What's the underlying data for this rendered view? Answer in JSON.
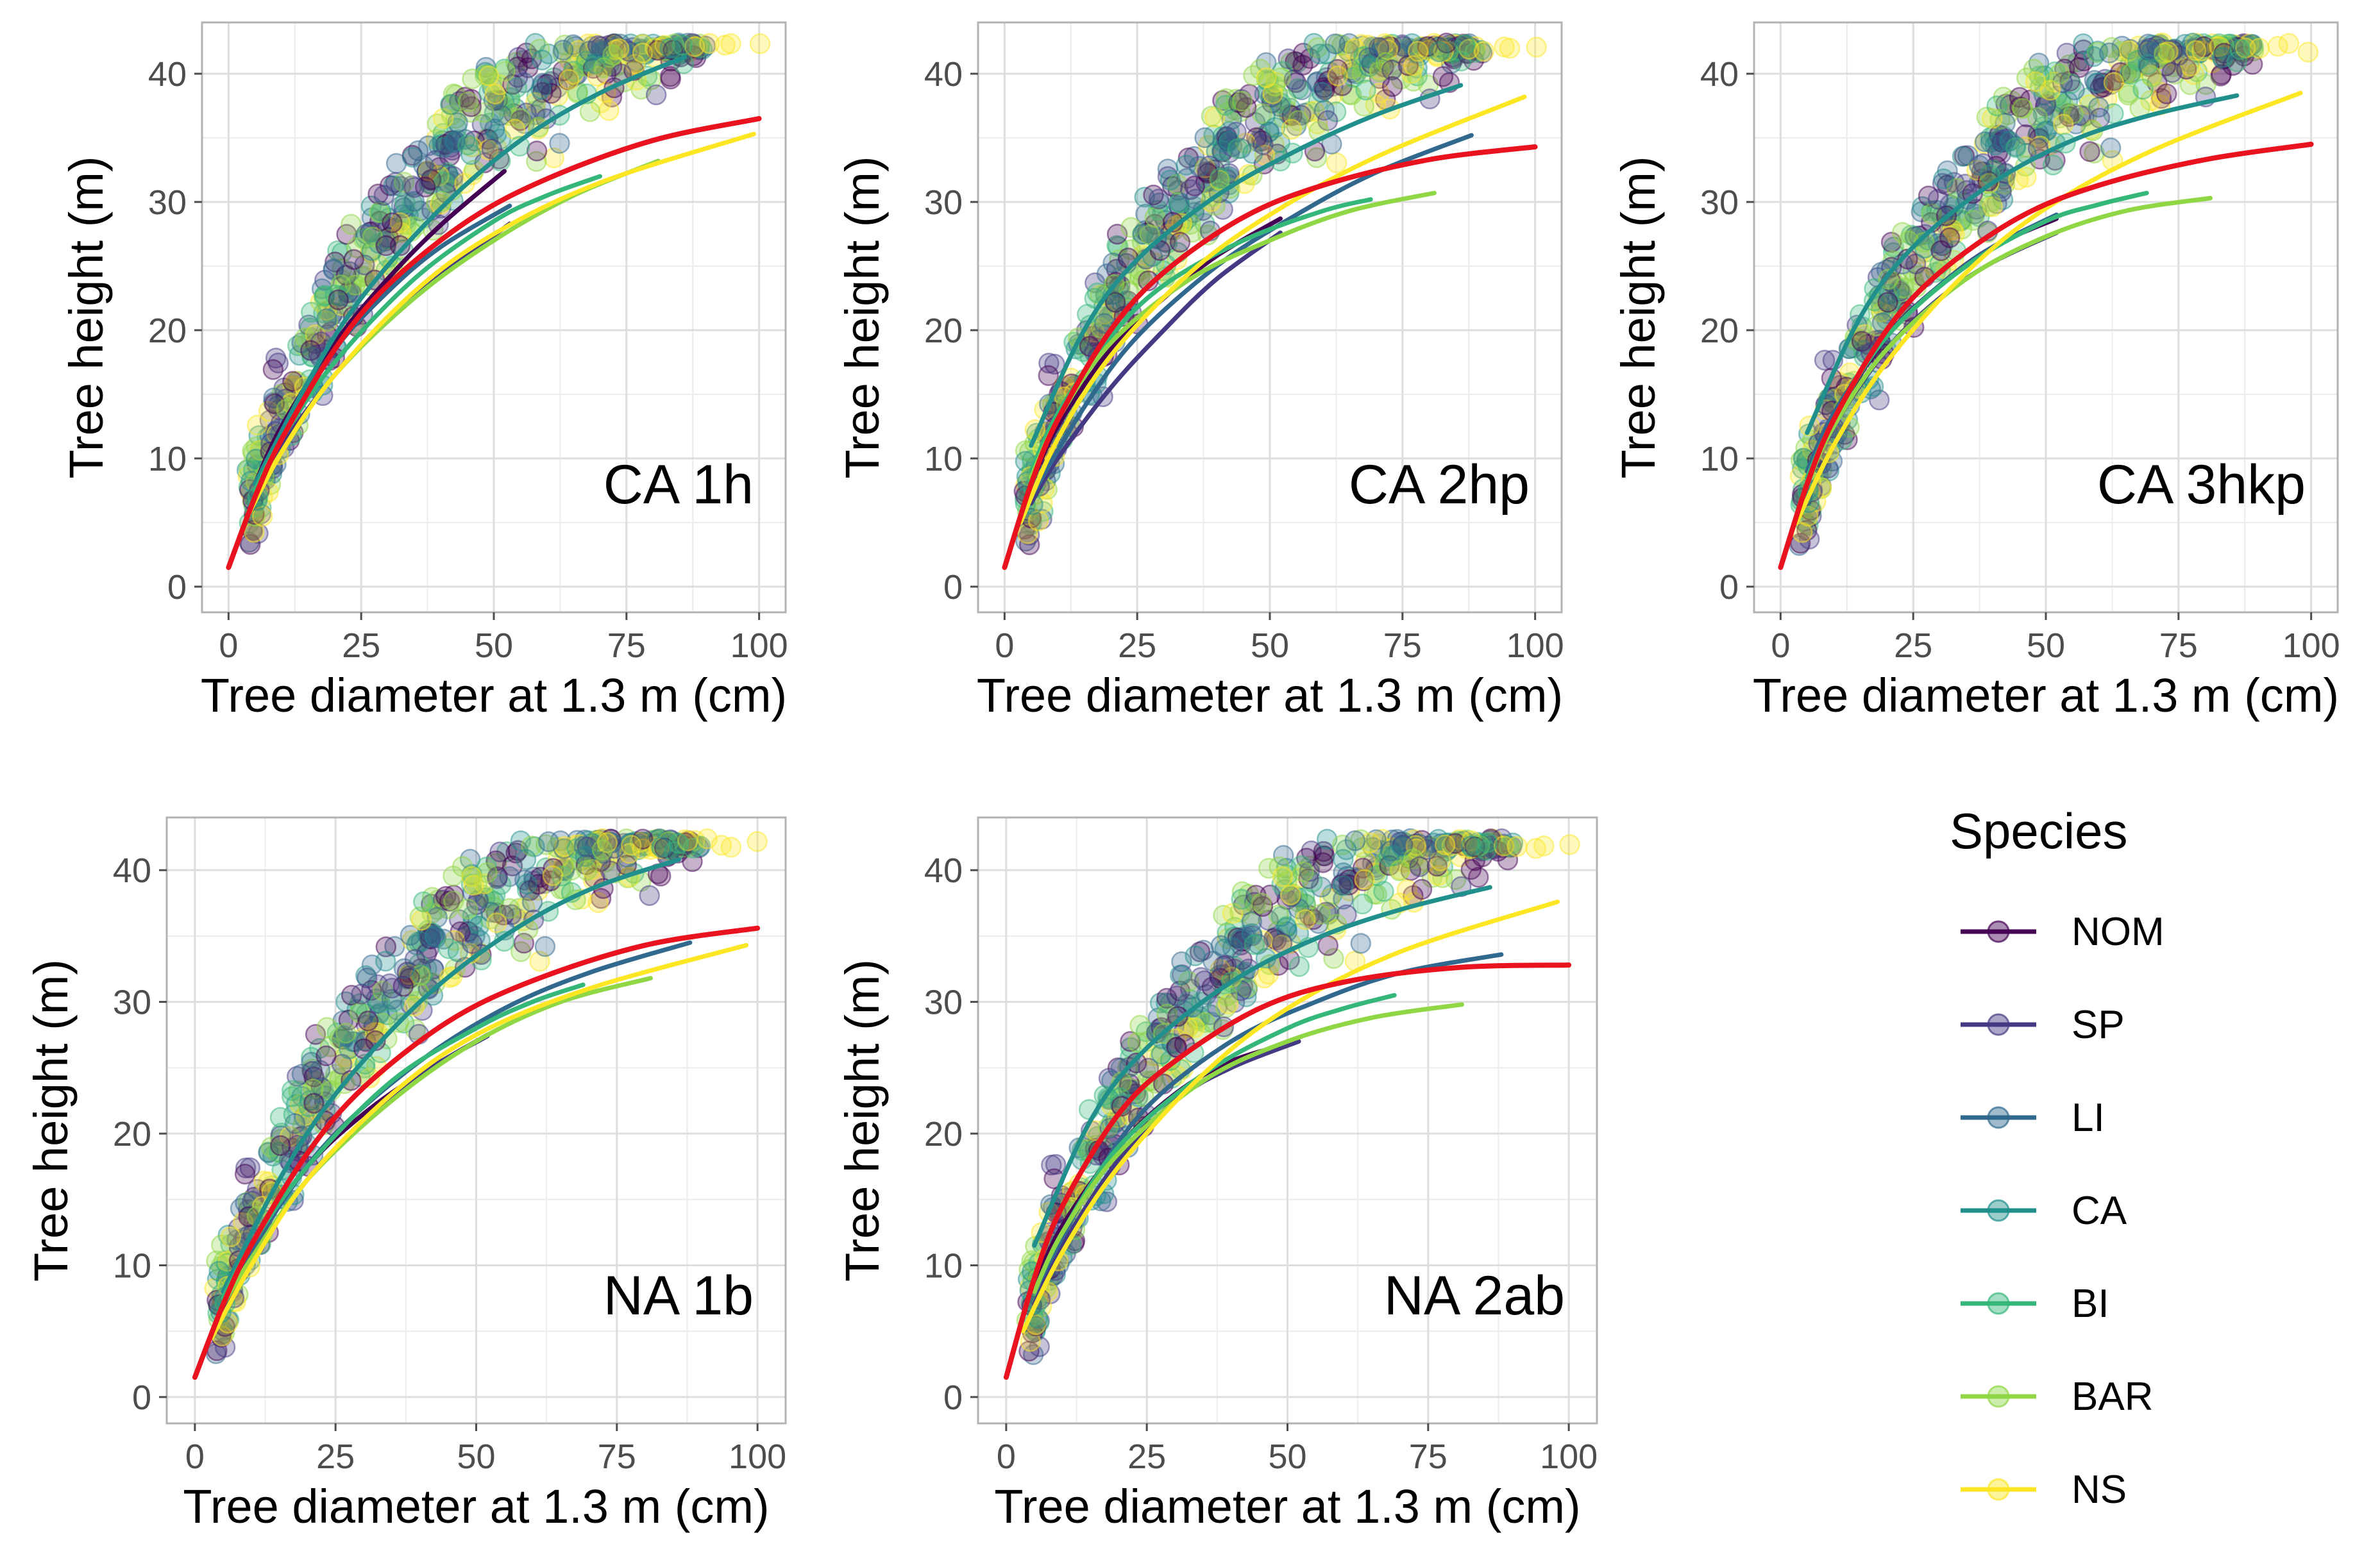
{
  "figure": {
    "legend": {
      "title": "Species",
      "entries": [
        {
          "name": "NOM",
          "color": "#440154"
        },
        {
          "name": "SP",
          "color": "#443a83"
        },
        {
          "name": "LI",
          "color": "#31688e"
        },
        {
          "name": "CA",
          "color": "#21908d"
        },
        {
          "name": "BI",
          "color": "#35b779"
        },
        {
          "name": "BAR",
          "color": "#8fd744"
        },
        {
          "name": "NS",
          "color": "#fde725"
        }
      ],
      "overall_fit_color": "#e8131f"
    }
  },
  "chart_data": [
    {
      "type": "scatter",
      "title": "CA 1h",
      "xlabel": "Tree diameter at 1.3 m (cm)",
      "ylabel": "Tree height (m)",
      "xlim": [
        -5,
        105
      ],
      "ylim": [
        -2,
        44
      ],
      "xticks": [
        0,
        25,
        50,
        75,
        100
      ],
      "yticks": [
        0,
        10,
        20,
        30,
        40
      ],
      "grid": true,
      "fit_curves": [
        {
          "name": "NOM",
          "color": "#440154",
          "x": [
            5,
            10,
            20,
            30,
            40,
            52
          ],
          "y": [
            8,
            12.5,
            19,
            24,
            28.2,
            32.4
          ]
        },
        {
          "name": "SP",
          "color": "#443a83",
          "x": [
            5,
            10,
            20,
            30,
            40,
            53
          ],
          "y": [
            7.5,
            11,
            16.5,
            20.8,
            24.3,
            28.3
          ]
        },
        {
          "name": "LI",
          "color": "#31688e",
          "x": [
            5,
            10,
            20,
            30,
            40,
            53
          ],
          "y": [
            8,
            12,
            18.5,
            23,
            26.5,
            29.7
          ]
        },
        {
          "name": "CA",
          "color": "#21908d",
          "x": [
            5,
            15,
            25,
            40,
            55,
            70,
            86
          ],
          "y": [
            8,
            16,
            22.5,
            29.5,
            34.8,
            38.5,
            41.3
          ]
        },
        {
          "name": "BI",
          "color": "#35b779",
          "x": [
            5,
            10,
            20,
            35,
            50,
            60,
            70
          ],
          "y": [
            7.5,
            11.5,
            17.5,
            24,
            28.5,
            30.5,
            32
          ]
        },
        {
          "name": "BAR",
          "color": "#8fd744",
          "x": [
            5,
            10,
            20,
            35,
            50,
            65,
            81
          ],
          "y": [
            7,
            10.5,
            16.5,
            22.5,
            27,
            30.5,
            33.2
          ]
        },
        {
          "name": "NS",
          "color": "#fde725",
          "x": [
            3,
            10,
            20,
            35,
            50,
            70,
            99
          ],
          "y": [
            5,
            10.5,
            16.5,
            23,
            27.5,
            31.5,
            35.3
          ]
        },
        {
          "name": "All",
          "color": "#e8131f",
          "x": [
            0,
            5,
            10,
            20,
            30,
            45,
            60,
            80,
            100
          ],
          "y": [
            1.5,
            7,
            11.5,
            18.5,
            23.5,
            28.5,
            31.8,
            34.8,
            36.5
          ]
        }
      ]
    },
    {
      "type": "scatter",
      "title": "CA 2hp",
      "xlabel": "Tree diameter at 1.3 m (cm)",
      "ylabel": "Tree height (m)",
      "xlim": [
        -5,
        105
      ],
      "ylim": [
        -2,
        44
      ],
      "xticks": [
        0,
        25,
        50,
        75,
        100
      ],
      "yticks": [
        0,
        10,
        20,
        30,
        40
      ],
      "grid": true,
      "fit_curves": [
        {
          "name": "NOM",
          "color": "#440154",
          "x": [
            5,
            10,
            20,
            30,
            40,
            52
          ],
          "y": [
            8,
            12.5,
            18.5,
            22.5,
            25.8,
            28.7
          ]
        },
        {
          "name": "SP",
          "color": "#443a83",
          "x": [
            5,
            10,
            20,
            30,
            40,
            52
          ],
          "y": [
            6.5,
            10,
            15.5,
            20,
            24,
            27.6
          ]
        },
        {
          "name": "LI",
          "color": "#31688e",
          "x": [
            5,
            15,
            25,
            40,
            55,
            70,
            88
          ],
          "y": [
            7,
            14,
            19.5,
            25,
            29,
            32.3,
            35.2
          ]
        },
        {
          "name": "CA",
          "color": "#21908d",
          "x": [
            5,
            15,
            25,
            40,
            55,
            70,
            86
          ],
          "y": [
            11,
            20,
            25.5,
            30.5,
            34,
            36.8,
            39.1
          ]
        },
        {
          "name": "BI",
          "color": "#35b779",
          "x": [
            5,
            10,
            20,
            30,
            45,
            60,
            69
          ],
          "y": [
            9,
            13.5,
            19.5,
            23.5,
            27,
            29.3,
            30.2
          ]
        },
        {
          "name": "BAR",
          "color": "#8fd744",
          "x": [
            5,
            10,
            20,
            35,
            50,
            65,
            81
          ],
          "y": [
            8.5,
            13,
            19,
            24,
            27,
            29.3,
            30.7
          ]
        },
        {
          "name": "NS",
          "color": "#fde725",
          "x": [
            3,
            10,
            20,
            35,
            50,
            70,
            98
          ],
          "y": [
            5,
            11.5,
            18,
            24.5,
            29,
            33.5,
            38.2
          ]
        },
        {
          "name": "All",
          "color": "#e8131f",
          "x": [
            0,
            5,
            10,
            20,
            30,
            45,
            60,
            80,
            100
          ],
          "y": [
            1.5,
            8,
            13,
            20,
            24.5,
            28.8,
            31.3,
            33.3,
            34.3
          ]
        }
      ]
    },
    {
      "type": "scatter",
      "title": "CA 3hkp",
      "xlabel": "Tree diameter at 1.3 m (cm)",
      "ylabel": "Tree height (m)",
      "xlim": [
        -5,
        105
      ],
      "ylim": [
        -2,
        44
      ],
      "xticks": [
        0,
        25,
        50,
        75,
        100
      ],
      "yticks": [
        0,
        10,
        20,
        30,
        40
      ],
      "grid": true,
      "fit_curves": [
        {
          "name": "NOM",
          "color": "#440154",
          "x": [
            5,
            10,
            20,
            30,
            40,
            52
          ],
          "y": [
            8.5,
            13,
            19.5,
            23.5,
            26.5,
            28.7
          ]
        },
        {
          "name": "SP",
          "color": "#443a83",
          "x": [
            5,
            10,
            20,
            30,
            40,
            52
          ],
          "y": [
            8,
            12.5,
            18.5,
            22.5,
            25.3,
            27.6
          ]
        },
        {
          "name": "LI",
          "color": "#31688e",
          "x": [
            5,
            10,
            20,
            30,
            40,
            52
          ],
          "y": [
            9,
            13.5,
            19.5,
            23.5,
            26.5,
            29
          ]
        },
        {
          "name": "CA",
          "color": "#21908d",
          "x": [
            5,
            15,
            25,
            40,
            55,
            70,
            86
          ],
          "y": [
            12,
            21,
            26.5,
            31.5,
            34.8,
            36.8,
            38.3
          ]
        },
        {
          "name": "BI",
          "color": "#35b779",
          "x": [
            5,
            10,
            20,
            35,
            50,
            60,
            69
          ],
          "y": [
            8.5,
            13,
            19.5,
            25,
            28.5,
            29.8,
            30.7
          ]
        },
        {
          "name": "BAR",
          "color": "#8fd744",
          "x": [
            5,
            10,
            20,
            35,
            50,
            65,
            81
          ],
          "y": [
            8,
            12.5,
            18.5,
            24,
            27.3,
            29.3,
            30.3
          ]
        },
        {
          "name": "NS",
          "color": "#fde725",
          "x": [
            3,
            10,
            20,
            35,
            50,
            70,
            98
          ],
          "y": [
            5,
            11,
            17.5,
            24.5,
            29.5,
            34,
            38.5
          ]
        },
        {
          "name": "All",
          "color": "#e8131f",
          "x": [
            0,
            5,
            10,
            20,
            30,
            45,
            60,
            80,
            100
          ],
          "y": [
            1.5,
            8,
            13,
            20,
            24.5,
            28.8,
            31.3,
            33.3,
            34.5
          ]
        }
      ]
    },
    {
      "type": "scatter",
      "title": "NA 1b",
      "xlabel": "Tree diameter at 1.3 m (cm)",
      "ylabel": "Tree height (m)",
      "xlim": [
        -5,
        105
      ],
      "ylim": [
        -2,
        44
      ],
      "xticks": [
        0,
        25,
        50,
        75,
        100
      ],
      "yticks": [
        0,
        10,
        20,
        30,
        40
      ],
      "grid": true,
      "fit_curves": [
        {
          "name": "NOM",
          "color": "#440154",
          "x": [
            5,
            10,
            20,
            30,
            40,
            52
          ],
          "y": [
            7.5,
            11.5,
            17.5,
            21.5,
            24.5,
            27.5
          ]
        },
        {
          "name": "SP",
          "color": "#443a83",
          "x": [
            5,
            10,
            20,
            30,
            40,
            52
          ],
          "y": [
            6.5,
            10.5,
            16.5,
            21,
            24.5,
            27.4
          ]
        },
        {
          "name": "LI",
          "color": "#31688e",
          "x": [
            5,
            15,
            25,
            40,
            55,
            70,
            88
          ],
          "y": [
            7,
            14.5,
            20,
            25.5,
            29.5,
            32.2,
            34.5
          ]
        },
        {
          "name": "CA",
          "color": "#21908d",
          "x": [
            5,
            15,
            25,
            40,
            55,
            70,
            86
          ],
          "y": [
            8,
            16.5,
            23,
            30,
            35,
            38.5,
            40.8
          ]
        },
        {
          "name": "BI",
          "color": "#35b779",
          "x": [
            5,
            10,
            20,
            35,
            50,
            60,
            69
          ],
          "y": [
            7.5,
            11.5,
            17.5,
            24,
            28,
            30,
            31.3
          ]
        },
        {
          "name": "BAR",
          "color": "#8fd744",
          "x": [
            5,
            10,
            20,
            35,
            50,
            65,
            81
          ],
          "y": [
            7,
            10.5,
            16.5,
            22.5,
            27,
            30,
            31.8
          ]
        },
        {
          "name": "NS",
          "color": "#fde725",
          "x": [
            3,
            10,
            20,
            35,
            50,
            70,
            98
          ],
          "y": [
            4.5,
            10,
            16.5,
            23,
            27.5,
            31,
            34.3
          ]
        },
        {
          "name": "All",
          "color": "#e8131f",
          "x": [
            0,
            5,
            10,
            20,
            30,
            45,
            60,
            80,
            100
          ],
          "y": [
            1.5,
            7,
            11.5,
            18.5,
            23.5,
            28.5,
            31.6,
            34.3,
            35.6
          ]
        }
      ]
    },
    {
      "type": "scatter",
      "title": "NA 2ab",
      "xlabel": "Tree diameter at 1.3 m (cm)",
      "ylabel": "Tree height (m)",
      "xlim": [
        -5,
        105
      ],
      "ylim": [
        -2,
        44
      ],
      "xticks": [
        0,
        25,
        50,
        75,
        100
      ],
      "yticks": [
        0,
        10,
        20,
        30,
        40
      ],
      "grid": true,
      "fit_curves": [
        {
          "name": "NOM",
          "color": "#440154",
          "x": [
            5,
            10,
            20,
            30,
            40,
            52
          ],
          "y": [
            8.5,
            13,
            19,
            23,
            25.5,
            27
          ]
        },
        {
          "name": "SP",
          "color": "#443a83",
          "x": [
            5,
            10,
            20,
            30,
            40,
            52
          ],
          "y": [
            7,
            11.5,
            18,
            22.5,
            25,
            27
          ]
        },
        {
          "name": "LI",
          "color": "#31688e",
          "x": [
            5,
            15,
            25,
            40,
            55,
            70,
            88
          ],
          "y": [
            8,
            16,
            22,
            27,
            30,
            32.2,
            33.6
          ]
        },
        {
          "name": "CA",
          "color": "#21908d",
          "x": [
            5,
            15,
            25,
            40,
            55,
            70,
            86
          ],
          "y": [
            11.5,
            21,
            26.5,
            31.5,
            34.8,
            37,
            38.7
          ]
        },
        {
          "name": "BI",
          "color": "#35b779",
          "x": [
            5,
            10,
            20,
            35,
            50,
            60,
            69
          ],
          "y": [
            8,
            12.5,
            19,
            24.5,
            28,
            29.5,
            30.5
          ]
        },
        {
          "name": "BAR",
          "color": "#8fd744",
          "x": [
            5,
            10,
            20,
            35,
            50,
            65,
            81
          ],
          "y": [
            8,
            12.5,
            18.5,
            24,
            27,
            28.8,
            29.8
          ]
        },
        {
          "name": "NS",
          "color": "#fde725",
          "x": [
            3,
            10,
            20,
            35,
            50,
            70,
            98
          ],
          "y": [
            5,
            11,
            17.5,
            24.5,
            29.5,
            33.8,
            37.6
          ]
        },
        {
          "name": "All",
          "color": "#e8131f",
          "x": [
            0,
            5,
            10,
            20,
            30,
            45,
            60,
            80,
            100
          ],
          "y": [
            1.5,
            9,
            14.5,
            21.5,
            25.5,
            29.5,
            31.5,
            32.6,
            32.8
          ]
        }
      ]
    }
  ]
}
